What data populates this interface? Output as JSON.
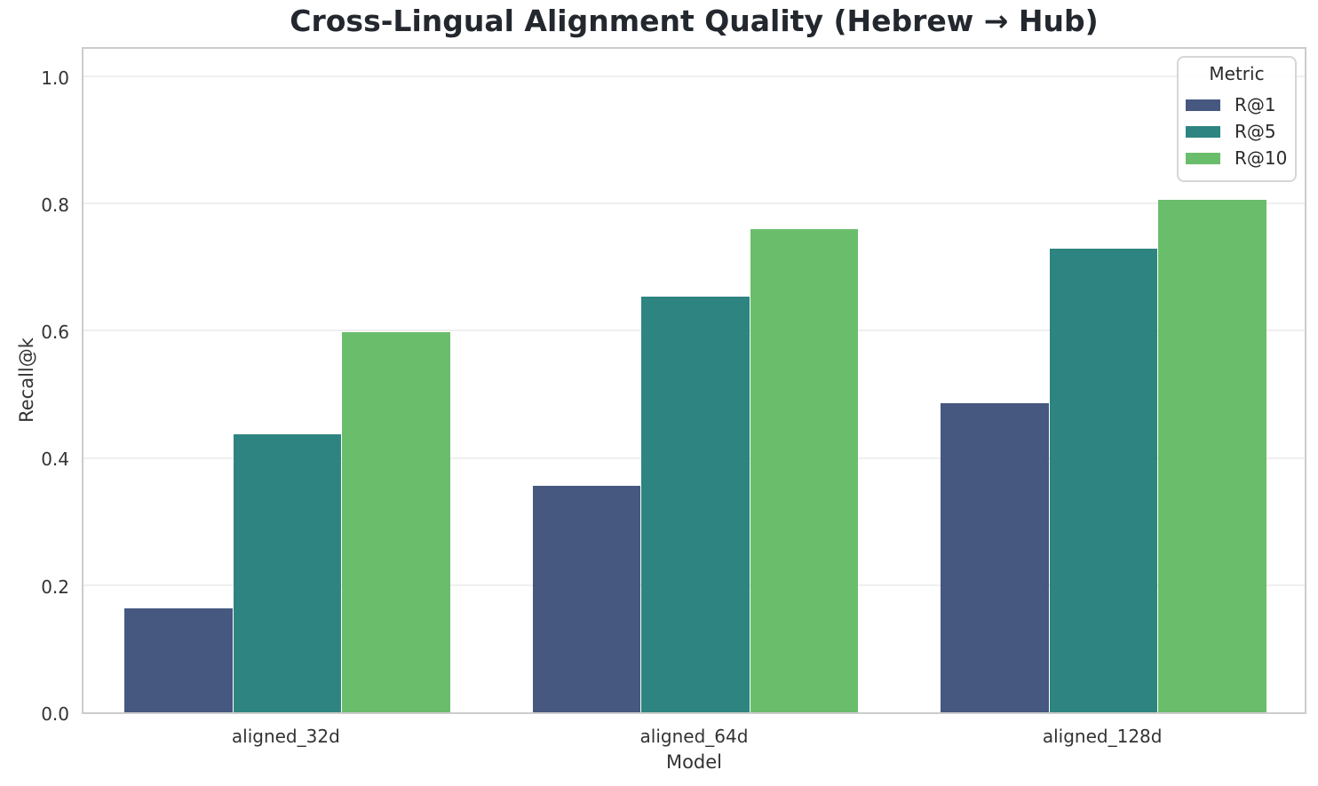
{
  "chart_data": {
    "type": "bar",
    "title": "Cross-Lingual Alignment Quality (Hebrew → Hub)",
    "xlabel": "Model",
    "ylabel": "Recall@k",
    "categories": [
      "aligned_32d",
      "aligned_64d",
      "aligned_128d"
    ],
    "series": [
      {
        "name": "R@1",
        "color": "#465880",
        "values": [
          0.164,
          0.356,
          0.486
        ]
      },
      {
        "name": "R@5",
        "color": "#2E8480",
        "values": [
          0.437,
          0.653,
          0.729
        ]
      },
      {
        "name": "R@10",
        "color": "#6ABE6B",
        "values": [
          0.597,
          0.76,
          0.806
        ]
      }
    ],
    "y_ticks": [
      {
        "value": 0.0,
        "label": "0.0"
      },
      {
        "value": 0.2,
        "label": "0.2"
      },
      {
        "value": 0.4,
        "label": "0.4"
      },
      {
        "value": 0.6,
        "label": "0.6"
      },
      {
        "value": 0.8,
        "label": "0.8"
      },
      {
        "value": 1.0,
        "label": "1.0"
      }
    ],
    "ylim": [
      0,
      1.05
    ],
    "grid": true,
    "legend": {
      "title": "Metric",
      "position": "upper right"
    }
  },
  "colors": {
    "grid": "#efefef",
    "spine": "#cccccc",
    "text": "#333333",
    "title_text": "#23272e"
  }
}
